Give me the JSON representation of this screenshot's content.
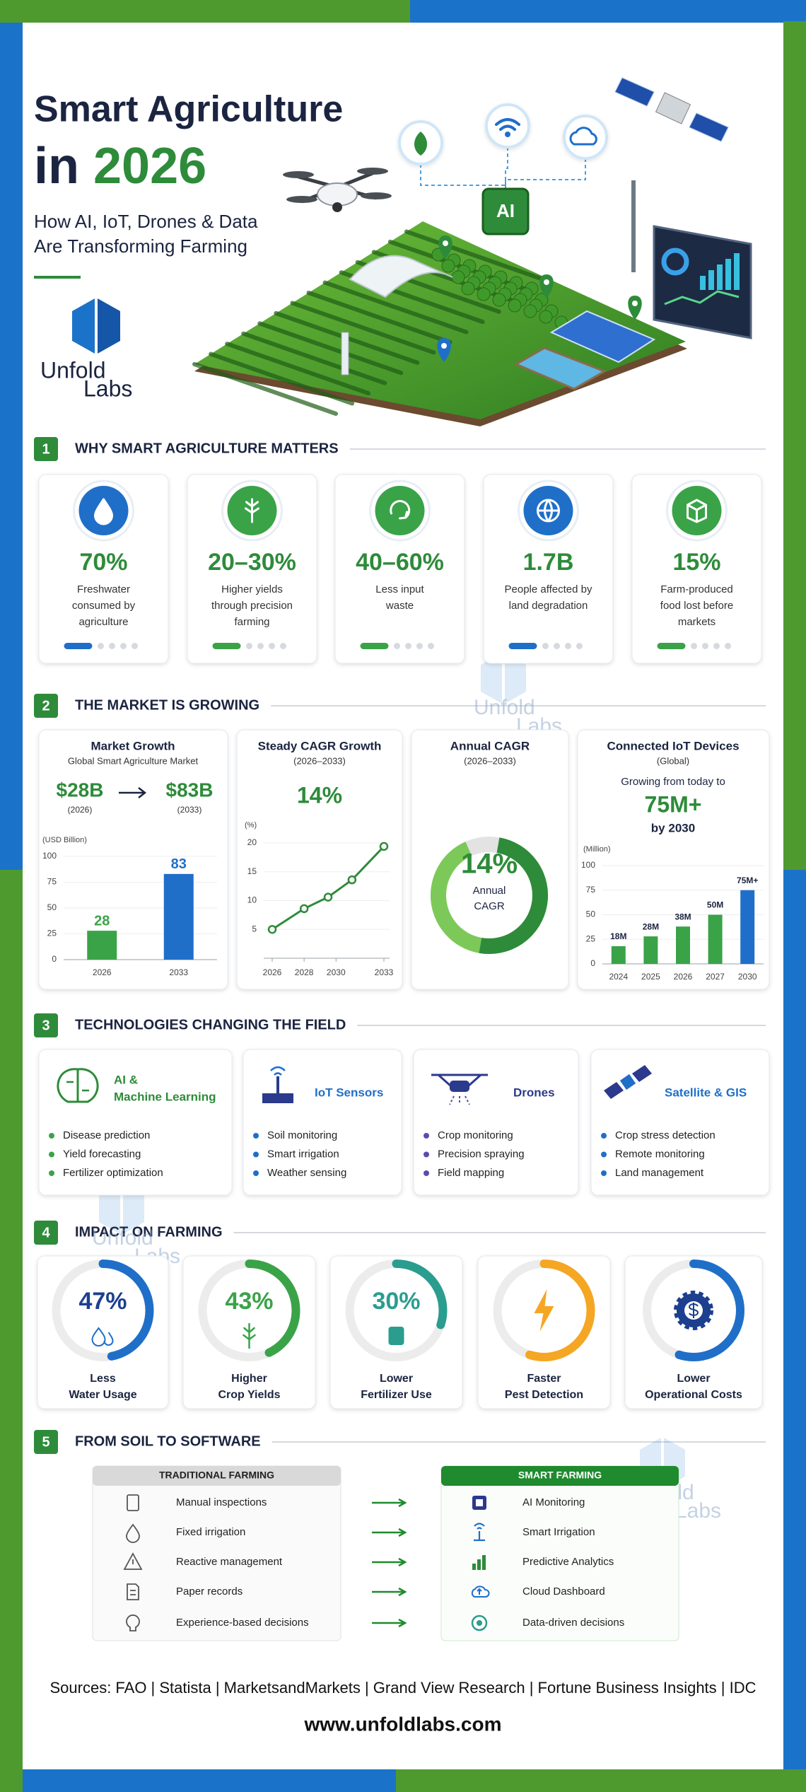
{
  "header": {
    "title": "Smart Agriculture",
    "title_prefix": "in",
    "title_year": "2026",
    "subtitle": [
      "How AI, IoT, Drones & Data",
      "Are Transforming Farming"
    ],
    "chip_label": "AI"
  },
  "logo": {
    "word1": "Unfold",
    "word2": "Labs"
  },
  "sections": [
    {
      "number": "1",
      "title": "WHY SMART AGRICULTURE MATTERS"
    },
    {
      "number": "2",
      "title": "THE MARKET IS GROWING"
    },
    {
      "number": "3",
      "title": "TECHNOLOGIES CHANGING THE FIELD"
    },
    {
      "number": "4",
      "title": "IMPACT ON FARMING"
    },
    {
      "number": "5",
      "title": "FROM SOIL TO SOFTWARE"
    }
  ],
  "why": [
    {
      "value": "70%",
      "text": [
        "Freshwater",
        "consumed by",
        "agriculture"
      ]
    },
    {
      "value": "20–30%",
      "text": [
        "Higher yields",
        "through precision",
        "farming"
      ]
    },
    {
      "value": "40–60%",
      "text": [
        "Less input",
        "waste"
      ]
    },
    {
      "value": "1.7B",
      "text": [
        "People affected by",
        "land degradation"
      ]
    },
    {
      "value": "15%",
      "text": [
        "Farm-produced",
        "food lost before",
        "markets"
      ]
    }
  ],
  "market": {
    "growth": {
      "title": "Market Growth",
      "subtitle": "Global Smart Agriculture Market",
      "from": "$28B",
      "from_year": "(2026)",
      "to": "$83B",
      "to_year": "(2033)",
      "axis_label": "(USD Billion)",
      "chart": {
        "type": "bar",
        "categories": [
          "2026",
          "2033"
        ],
        "values": [
          28,
          83
        ],
        "colors": [
          "#3aa348",
          "#1f6fc9"
        ],
        "ylim": [
          0,
          100
        ],
        "yticks": [
          0,
          25,
          50,
          75,
          100
        ]
      }
    },
    "cagr": {
      "title": "Steady CAGR Growth",
      "subtitle": "(2026–2033)",
      "headline": "14%",
      "axis_label": "(%)",
      "chart": {
        "type": "line",
        "x": [
          2026,
          2028,
          2029.5,
          2031,
          2033
        ],
        "values": [
          5,
          8.6,
          10.6,
          13.6,
          19.4
        ],
        "color": "#2e8b3a",
        "xlim": [
          2026,
          2033
        ],
        "xticks": [
          2026,
          2028,
          2030,
          2033
        ],
        "ylim": [
          0,
          20
        ],
        "yticks": [
          5,
          10,
          15,
          20
        ]
      }
    },
    "annual": {
      "title": "Annual CAGR",
      "subtitle": "(2026–2033)",
      "value": "14%",
      "label": [
        "Annual",
        "CAGR"
      ]
    },
    "iot": {
      "title": "Connected IoT Devices",
      "subtitle": "(Global)",
      "lead": "Growing from today to",
      "headline": "75M+",
      "tail": "by 2030",
      "axis_label": "(Million)",
      "chart": {
        "type": "bar",
        "categories": [
          "2024",
          "2025",
          "2026",
          "2027",
          "2030"
        ],
        "values": [
          18,
          28,
          38,
          50,
          75
        ],
        "value_labels": [
          "18M",
          "28M",
          "38M",
          "50M",
          "75M+"
        ],
        "colors": [
          "#3aa348",
          "#3aa348",
          "#3aa348",
          "#3aa348",
          "#1f6fc9"
        ],
        "ylim": [
          0,
          100
        ],
        "yticks": [
          0,
          25,
          50,
          75,
          100
        ]
      }
    }
  },
  "tech": [
    {
      "title": [
        "AI &",
        "Machine Learning"
      ],
      "bullets": [
        "Disease prediction",
        "Yield forecasting",
        "Fertilizer optimization"
      ]
    },
    {
      "title": [
        "IoT Sensors"
      ],
      "bullets": [
        "Soil monitoring",
        "Smart irrigation",
        "Weather sensing"
      ]
    },
    {
      "title": [
        "Drones"
      ],
      "bullets": [
        "Crop monitoring",
        "Precision spraying",
        "Field mapping"
      ]
    },
    {
      "title": [
        "Satellite & GIS"
      ],
      "bullets": [
        "Crop stress detection",
        "Remote monitoring",
        "Land management"
      ]
    }
  ],
  "impact": [
    {
      "value": 47,
      "value_label": "47%",
      "label": [
        "Less",
        "Water Usage"
      ],
      "color": "#1f6fc9"
    },
    {
      "value": 43,
      "value_label": "43%",
      "label": [
        "Higher",
        "Crop Yields"
      ],
      "color": "#3aa348"
    },
    {
      "value": 30,
      "value_label": "30%",
      "label": [
        "Lower",
        "Fertilizer Use"
      ],
      "color": "#2a9d8f"
    },
    {
      "label": [
        "Faster",
        "Pest Detection"
      ],
      "color": "#f5a623"
    },
    {
      "label": [
        "Lower",
        "Operational Costs"
      ],
      "color": "#1f6fc9"
    }
  ],
  "comparison": {
    "headers": [
      "TRADITIONAL FARMING",
      "SMART FARMING"
    ],
    "rows": [
      [
        "Manual inspections",
        "AI Monitoring"
      ],
      [
        "Fixed irrigation",
        "Smart Irrigation"
      ],
      [
        "Reactive management",
        "Predictive Analytics"
      ],
      [
        "Paper records",
        "Cloud Dashboard"
      ],
      [
        "Experience-based decisions",
        "Data-driven decisions"
      ]
    ]
  },
  "footer": {
    "sources": "Sources: FAO | Statista | MarketsandMarkets | Grand View Research | Fortune Business Insights | IDC",
    "website": "www.unfoldlabs.com"
  }
}
